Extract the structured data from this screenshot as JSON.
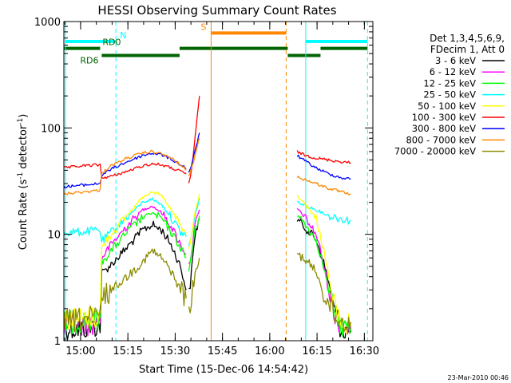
{
  "chart_data": {
    "type": "line",
    "title": "HESSI Observing Summary Count Rates",
    "xlabel": "Start Time (15-Dec-06 14:54:42)",
    "ylabel_main": "Count Rate (s",
    "ylabel_sup1": "-1",
    "ylabel_mid": " detector",
    "ylabel_sup2": "-1",
    "ylabel_end": ")",
    "x_unit": "minutes after 14:54:42 UT",
    "xlim": [
      0,
      98
    ],
    "ylim": [
      1,
      1000
    ],
    "yscale": "log",
    "x_ticks": [
      {
        "label": "15:00",
        "x": 5.3
      },
      {
        "label": "15:15",
        "x": 20.3
      },
      {
        "label": "15:30",
        "x": 35.3
      },
      {
        "label": "15:45",
        "x": 50.3
      },
      {
        "label": "16:00",
        "x": 65.3
      },
      {
        "label": "16:15",
        "x": 80.3
      },
      {
        "label": "16:30",
        "x": 95.3
      }
    ],
    "y_ticks": [
      {
        "label": "1",
        "y": 1
      },
      {
        "label": "10",
        "y": 10
      },
      {
        "label": "100",
        "y": 100
      },
      {
        "label": "1000",
        "y": 1000
      }
    ],
    "legend_header": [
      "Det 1,3,4,5,6,9,",
      "FDecim 1, Att 0"
    ],
    "legend_placement": "right",
    "series": [
      {
        "name": "3 - 6 keV",
        "color": "#000000",
        "segments": [
          {
            "x": [
              0,
              6,
              11.5,
              12,
              15,
              20,
              25,
              28,
              31,
              34,
              37,
              38.8
            ],
            "y": [
              1.3,
              1.3,
              1.4,
              4.3,
              5.2,
              7.5,
              11,
              12.3,
              11,
              8,
              5,
              3
            ]
          },
          {
            "x": [
              39.6,
              40.5,
              41.6,
              43
            ],
            "y": [
              2.5,
              4.5,
              10,
              14
            ]
          },
          {
            "x": [
              74,
              76,
              80,
              82,
              84,
              86,
              88,
              90,
              91
            ],
            "y": [
              14,
              12,
              9,
              6,
              3.5,
              1.8,
              1.3,
              1.2,
              1.2
            ]
          }
        ]
      },
      {
        "name": "6 - 12 keV",
        "color": "#ff00ff",
        "segments": [
          {
            "x": [
              0,
              6,
              11.5,
              12,
              15,
              20,
              25,
              28,
              31,
              34,
              37,
              38.8
            ],
            "y": [
              1.4,
              1.4,
              1.5,
              6,
              8,
              12,
              17,
              18.5,
              16,
              12,
              8,
              6.5
            ]
          },
          {
            "x": [
              39.6,
              40.5,
              41.6,
              43
            ],
            "y": [
              5,
              7,
              12,
              17
            ]
          },
          {
            "x": [
              74,
              76,
              80,
              82,
              84,
              86,
              88,
              90,
              91
            ],
            "y": [
              17.5,
              15,
              10,
              6,
              3,
              1.8,
              1.4,
              1.3,
              1.3
            ]
          }
        ]
      },
      {
        "name": "12 - 25 keV",
        "color": "#00ff00",
        "segments": [
          {
            "x": [
              0,
              6,
              11.5,
              12,
              15,
              20,
              25,
              28,
              31,
              34,
              37,
              38.8
            ],
            "y": [
              1.5,
              1.5,
              1.6,
              5.5,
              7,
              10.5,
              14.5,
              16,
              14,
              10.5,
              7.5,
              6
            ]
          },
          {
            "x": [
              39.6,
              40.5,
              41.6,
              43
            ],
            "y": [
              4.5,
              6.5,
              11,
              15
            ]
          },
          {
            "x": [
              74,
              76,
              80,
              82,
              84,
              86,
              88,
              90,
              91
            ],
            "y": [
              15,
              13,
              9,
              5.5,
              3,
              1.7,
              1.4,
              1.3,
              1.3
            ]
          }
        ]
      },
      {
        "name": "25 - 50 keV",
        "color": "#00ffff",
        "segments": [
          {
            "x": [
              0,
              6,
              11.5,
              12,
              15,
              20,
              25,
              28,
              31,
              34,
              37,
              38.8
            ],
            "y": [
              10.5,
              10.5,
              11,
              8.5,
              10.5,
              14.5,
              20,
              21.5,
              19,
              14.5,
              10.5,
              9.5
            ]
          },
          {
            "x": [
              39.6,
              40.5,
              41.6,
              43
            ],
            "y": [
              8,
              9.5,
              15,
              22
            ]
          },
          {
            "x": [
              74,
              76,
              80,
              84,
              88,
              91
            ],
            "y": [
              20,
              19,
              17,
              15,
              14,
              13.5
            ]
          }
        ]
      },
      {
        "name": "50 - 100 keV",
        "color": "#ffff00",
        "segments": [
          {
            "x": [
              0,
              6,
              11.5,
              12,
              15,
              20,
              25,
              28,
              31,
              34,
              37,
              38.8
            ],
            "y": [
              1.6,
              1.6,
              1.7,
              7.5,
              10,
              15,
              22.5,
              25.5,
              23,
              17,
              12,
              10
            ]
          },
          {
            "x": [
              39.6,
              40.5,
              41.6,
              43
            ],
            "y": [
              7,
              10,
              16,
              24
            ]
          },
          {
            "x": [
              74,
              76,
              80,
              82,
              84,
              86,
              88,
              90,
              91
            ],
            "y": [
              23,
              20,
              14,
              8,
              4,
              2,
              1.5,
              1.4,
              1.4
            ]
          }
        ]
      },
      {
        "name": "100 - 300 keV",
        "color": "#ff0000",
        "segments": [
          {
            "x": [
              0,
              6,
              11.5,
              12,
              15,
              20,
              25,
              28,
              31,
              34,
              37,
              38.8
            ],
            "y": [
              42,
              44,
              45,
              34,
              35,
              39,
              44,
              46,
              45,
              42,
              39,
              37
            ]
          },
          {
            "x": [
              39.6,
              40.5,
              41.6,
              43
            ],
            "y": [
              30,
              40,
              80,
              200
            ]
          },
          {
            "x": [
              74,
              76,
              80,
              84,
              88,
              91
            ],
            "y": [
              60,
              56,
              52,
              50,
              48,
              47
            ]
          }
        ]
      },
      {
        "name": "300 - 800 keV",
        "color": "#0000ff",
        "segments": [
          {
            "x": [
              0,
              6,
              11.5,
              12,
              15,
              20,
              25,
              28,
              31,
              34,
              37,
              38.8
            ],
            "y": [
              28,
              29,
              30,
              36,
              41,
              48,
              55,
              58,
              56,
              51,
              45,
              42
            ]
          },
          {
            "x": [
              39.6,
              40.5,
              41.6,
              43
            ],
            "y": [
              38,
              45,
              60,
              90
            ]
          },
          {
            "x": [
              74,
              76,
              80,
              84,
              88,
              91
            ],
            "y": [
              55,
              50,
              42,
              37,
              34,
              33
            ]
          }
        ]
      },
      {
        "name": "800 - 7000 keV",
        "color": "#ff8800",
        "segments": [
          {
            "x": [
              0,
              6,
              11.5,
              12,
              15,
              20,
              25,
              28,
              31,
              34,
              37,
              38.8
            ],
            "y": [
              24,
              25,
              26,
              38,
              44,
              52,
              58,
              60,
              57,
              52,
              45,
              40
            ]
          },
          {
            "x": [
              39.6,
              40.5,
              41.6,
              43
            ],
            "y": [
              35,
              42,
              55,
              80
            ]
          },
          {
            "x": [
              74,
              76,
              80,
              84,
              88,
              91
            ],
            "y": [
              35,
              33,
              30,
              27,
              25,
              24
            ]
          }
        ]
      },
      {
        "name": "7000 - 20000 keV",
        "color": "#8b8b00",
        "segments": [
          {
            "x": [
              0,
              6,
              11.5,
              12,
              15,
              20,
              25,
              28,
              31,
              34,
              37,
              38.8
            ],
            "y": [
              1.5,
              1.6,
              1.7,
              2.5,
              3,
              4,
              5.5,
              7,
              6,
              4.5,
              3,
              2.5
            ]
          },
          {
            "x": [
              39.6,
              40.5,
              41.6,
              43
            ],
            "y": [
              2,
              2.5,
              4,
              6
            ]
          },
          {
            "x": [
              74,
              76,
              80,
              82,
              84,
              86,
              88,
              90,
              91
            ],
            "y": [
              6.5,
              6,
              4.5,
              3,
              2.2,
              1.7,
              1.5,
              1.5,
              1.5
            ]
          }
        ]
      }
    ],
    "flag_bars": [
      {
        "label": "N",
        "color": "#00ffff",
        "y": 650,
        "segments": [
          [
            0.5,
            16.5
          ],
          [
            76.7,
            96.3
          ]
        ]
      },
      {
        "label": "RD0",
        "color": "#006400",
        "y": 560,
        "segments": [
          [
            0,
            11.5
          ],
          [
            36.7,
            71
          ],
          [
            81.4,
            96.3
          ]
        ]
      },
      {
        "label": "RD6",
        "color": "#006400",
        "y": 480,
        "segments": [
          [
            12,
            36.7
          ],
          [
            71,
            81.4
          ]
        ]
      },
      {
        "label": "S",
        "color": "#ff8800",
        "y": 780,
        "segments": [
          [
            46.7,
            70.5
          ]
        ]
      }
    ],
    "event_lines": [
      {
        "x": 0.5,
        "color": "#00ffff",
        "style": "solid"
      },
      {
        "x": 16.5,
        "color": "#00ffff",
        "style": "dashed"
      },
      {
        "x": 76.7,
        "color": "#00ffff",
        "style": "solid"
      },
      {
        "x": 96.3,
        "color": "#00ffff",
        "style": "dashed"
      },
      {
        "x": 46.7,
        "color": "#ff8800",
        "style": "solid"
      },
      {
        "x": 70.5,
        "color": "#ff8800",
        "style": "dashed"
      }
    ],
    "timestamp": "23-Mar-2010 00:46"
  }
}
